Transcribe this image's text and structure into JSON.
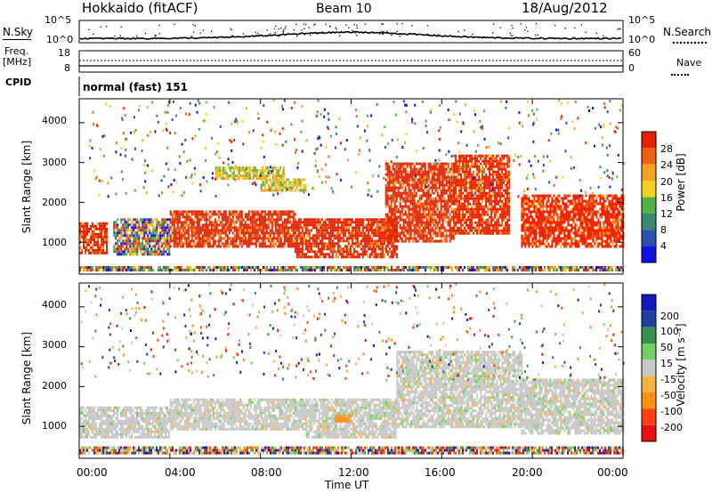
{
  "header": {
    "title": "Hokkaido (fitACF)",
    "beam": "Beam 10",
    "date": "18/Aug/2012"
  },
  "top_panels": {
    "nsky_label": "N.Sky",
    "nsearch_label": "N.Search",
    "nsky_ticks": [
      "10^5",
      "10^0"
    ],
    "nsearch_ticks": [
      "10^5",
      "10^0"
    ],
    "freq_label_1": "Freq.",
    "freq_label_2": "[MHz]",
    "freq_ticks": [
      "18",
      "8"
    ],
    "nave_label": "Nave",
    "nave_ticks": [
      "60",
      "0"
    ],
    "cpid_label": "CPID",
    "cpid_value": "normal (fast) 151"
  },
  "colors": {
    "power": [
      "#1010e0",
      "#2c50b0",
      "#3a8870",
      "#52b048",
      "#f4d020",
      "#f8a020",
      "#f06010",
      "#e82000"
    ],
    "velocity": [
      "#e81010",
      "#ff4010",
      "#ff9010",
      "#f8b040",
      "#c8c8c8",
      "#70d060",
      "#3a9050",
      "#2040a0",
      "#1818c0"
    ]
  },
  "chart_data": [
    {
      "type": "heatmap",
      "name": "Power",
      "ylabel": "Slant Range [km]",
      "y_ticks": [
        "4000",
        "3000",
        "2000",
        "1000"
      ],
      "colorbar_label": "Power [dB]",
      "colorbar_ticks": [
        "28",
        "24",
        "20",
        "16",
        "12",
        "8",
        "4"
      ],
      "ylim": [
        200,
        4600
      ],
      "bands": [
        {
          "range": [
            300,
            400
          ],
          "t": [
            0.0,
            24.0
          ],
          "level": "mixed"
        },
        {
          "range": [
            700,
            1500
          ],
          "t": [
            0.0,
            1.2
          ],
          "level": "high"
        },
        {
          "range": [
            700,
            1600
          ],
          "t": [
            1.5,
            4.0
          ],
          "level": "mixed"
        },
        {
          "range": [
            900,
            1800
          ],
          "t": [
            4.0,
            9.5
          ],
          "level": "high"
        },
        {
          "range": [
            600,
            1600
          ],
          "t": [
            9.5,
            14.0
          ],
          "level": "high"
        },
        {
          "range": [
            1000,
            3000
          ],
          "t": [
            13.5,
            16.5
          ],
          "level": "high"
        },
        {
          "range": [
            1200,
            3200
          ],
          "t": [
            16.5,
            19.0
          ],
          "level": "high"
        },
        {
          "range": [
            900,
            2200
          ],
          "t": [
            19.5,
            24.0
          ],
          "level": "high"
        },
        {
          "range": [
            2600,
            2900
          ],
          "t": [
            6.0,
            9.0
          ],
          "level": "mid"
        },
        {
          "range": [
            2300,
            2600
          ],
          "t": [
            8.0,
            10.0
          ],
          "level": "mid"
        }
      ]
    },
    {
      "type": "heatmap",
      "name": "Velocity",
      "ylabel": "Slant Range [km]",
      "xlabel": "Time UT",
      "x_ticks": [
        "00:00",
        "04:00",
        "08:00",
        "12:00",
        "16:00",
        "20:00",
        "00:00"
      ],
      "y_ticks": [
        "4000",
        "3000",
        "2000",
        "1000"
      ],
      "colorbar_label": "Velocity [m s⁻¹]",
      "colorbar_ticks": [
        "200",
        "100",
        "50",
        "15",
        "-15",
        "-50",
        "-100",
        "-200"
      ],
      "ylim": [
        200,
        4600
      ],
      "xlim": [
        "00:00",
        "24:00"
      ],
      "bands": [
        {
          "range": [
            300,
            500
          ],
          "t": [
            0.0,
            24.0
          ],
          "level": "mixed"
        },
        {
          "range": [
            700,
            1500
          ],
          "t": [
            0.0,
            4.0
          ],
          "level": "low"
        },
        {
          "range": [
            900,
            1700
          ],
          "t": [
            4.0,
            10.0
          ],
          "level": "low"
        },
        {
          "range": [
            700,
            1700
          ],
          "t": [
            10.0,
            14.0
          ],
          "level": "low"
        },
        {
          "range": [
            1000,
            2900
          ],
          "t": [
            14.0,
            19.5
          ],
          "level": "low"
        },
        {
          "range": [
            800,
            2200
          ],
          "t": [
            19.5,
            24.0
          ],
          "level": "low"
        },
        {
          "range": [
            1100,
            1300
          ],
          "t": [
            11.3,
            12.0
          ],
          "level": "neg"
        }
      ]
    }
  ]
}
